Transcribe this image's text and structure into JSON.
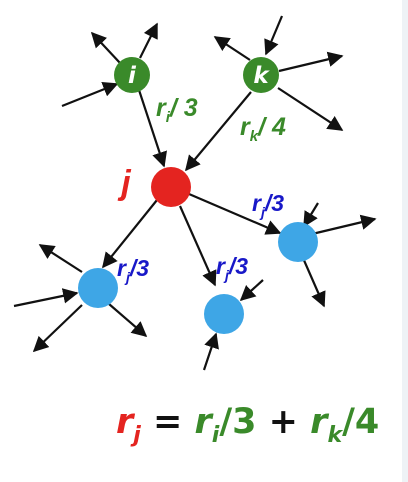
{
  "colors": {
    "green": "#3a8a2a",
    "red": "#e42420",
    "blue": "#1818c8",
    "lightblue": "#3ea6e6",
    "black": "#111111",
    "gray_right_edge": "#e8edf3"
  },
  "nodes": {
    "i": {
      "label": "i"
    },
    "k": {
      "label": "k"
    },
    "j": {
      "label": "j"
    }
  },
  "edge_labels": {
    "ri_over_3": {
      "var": "r",
      "sub": "i",
      "frac": "/ 3"
    },
    "rk_over_4": {
      "var": "r",
      "sub": "k",
      "frac": "/ 4"
    },
    "rj_over_3_right": {
      "var": "r",
      "sub": "j",
      "frac": "/3"
    },
    "rj_over_3_left": {
      "var": "r",
      "sub": "j",
      "frac": "/3"
    },
    "rj_over_3_mid": {
      "var": "r",
      "sub": "j",
      "frac": "/3"
    }
  },
  "equation": {
    "lhs_var": "r",
    "lhs_sub": "j",
    "equals": " = ",
    "t1_var": "r",
    "t1_sub": "i",
    "t1_frac": "/3",
    "plus": " + ",
    "t2_var": "r",
    "t2_sub": "k",
    "t2_frac": "/4"
  }
}
